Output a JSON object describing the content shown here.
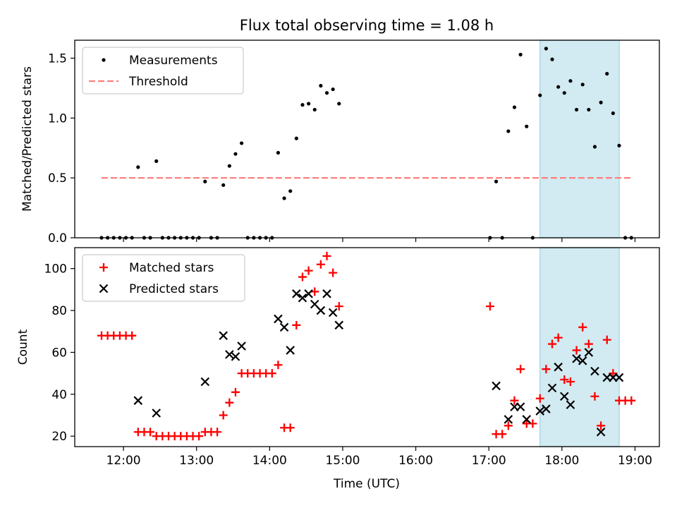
{
  "chart_data": [
    {
      "type": "scatter",
      "title": "Flux total observing time = 1.08 h",
      "xlabel": "",
      "ylabel": "Matched/Predicted stars",
      "xlim": [
        "11:20",
        "19:20"
      ],
      "ylim": [
        0,
        1.65
      ],
      "yticks": [
        "0.0",
        "0.5",
        "1.0",
        "1.5"
      ],
      "xticks": [
        "12:00",
        "13:00",
        "14:00",
        "15:00",
        "16:00",
        "17:00",
        "18:00",
        "19:00"
      ],
      "show_xtick_labels": false,
      "grid": false,
      "legend_position": "upper-left",
      "shaded_span": [
        "17:42",
        "18:47"
      ],
      "shaded_color": "#add8e6",
      "series": [
        {
          "name": "Measurements",
          "kind": "points",
          "color": "#000000",
          "points": [
            [
              "11:42",
              0
            ],
            [
              "11:47",
              0
            ],
            [
              "11:52",
              0
            ],
            [
              "11:57",
              0
            ],
            [
              "12:02",
              0
            ],
            [
              "12:07",
              0
            ],
            [
              "12:12",
              0.59
            ],
            [
              "12:17",
              0
            ],
            [
              "12:22",
              0
            ],
            [
              "12:27",
              0.64
            ],
            [
              "12:32",
              0
            ],
            [
              "12:37",
              0
            ],
            [
              "12:42",
              0
            ],
            [
              "12:47",
              0
            ],
            [
              "12:52",
              0
            ],
            [
              "12:57",
              0
            ],
            [
              "13:02",
              0
            ],
            [
              "13:07",
              0.47
            ],
            [
              "13:12",
              0
            ],
            [
              "13:17",
              0
            ],
            [
              "13:22",
              0.44
            ],
            [
              "13:27",
              0.6
            ],
            [
              "13:32",
              0.7
            ],
            [
              "13:37",
              0.79
            ],
            [
              "13:42",
              0
            ],
            [
              "13:47",
              0
            ],
            [
              "13:52",
              0
            ],
            [
              "13:57",
              0
            ],
            [
              "14:02",
              0
            ],
            [
              "14:07",
              0.71
            ],
            [
              "14:12",
              0.33
            ],
            [
              "14:17",
              0.39
            ],
            [
              "14:22",
              0.83
            ],
            [
              "14:27",
              1.11
            ],
            [
              "14:32",
              1.12
            ],
            [
              "14:37",
              1.07
            ],
            [
              "14:42",
              1.27
            ],
            [
              "14:47",
              1.21
            ],
            [
              "14:52",
              1.24
            ],
            [
              "14:57",
              1.12
            ],
            [
              "17:01",
              0
            ],
            [
              "17:06",
              0.47
            ],
            [
              "17:11",
              0
            ],
            [
              "17:16",
              0.89
            ],
            [
              "17:21",
              1.09
            ],
            [
              "17:26",
              1.53
            ],
            [
              "17:31",
              0.93
            ],
            [
              "17:36",
              0
            ],
            [
              "17:42",
              1.19
            ],
            [
              "17:47",
              1.58
            ],
            [
              "17:52",
              1.49
            ],
            [
              "17:57",
              1.26
            ],
            [
              "18:02",
              1.21
            ],
            [
              "18:07",
              1.31
            ],
            [
              "18:12",
              1.07
            ],
            [
              "18:17",
              1.28
            ],
            [
              "18:22",
              1.07
            ],
            [
              "18:27",
              0.76
            ],
            [
              "18:32",
              1.13
            ],
            [
              "18:37",
              1.37
            ],
            [
              "18:42",
              1.04
            ],
            [
              "18:47",
              0.77
            ],
            [
              "18:52",
              0
            ],
            [
              "18:57",
              0
            ]
          ]
        },
        {
          "name": "Threshold",
          "kind": "dashed-line",
          "color": "#ff7f7f",
          "points": [
            [
              "11:42",
              0.5
            ],
            [
              "18:57",
              0.5
            ]
          ]
        }
      ]
    },
    {
      "type": "scatter",
      "title": "",
      "xlabel": "Time (UTC)",
      "ylabel": "Count",
      "xlim": [
        "11:20",
        "19:20"
      ],
      "ylim": [
        15,
        110
      ],
      "yticks": [
        "20",
        "40",
        "60",
        "80",
        "100"
      ],
      "xticks": [
        "12:00",
        "13:00",
        "14:00",
        "15:00",
        "16:00",
        "17:00",
        "18:00",
        "19:00"
      ],
      "show_xtick_labels": true,
      "grid": false,
      "legend_position": "upper-left",
      "shaded_span": [
        "17:42",
        "18:47"
      ],
      "shaded_color": "#add8e6",
      "series": [
        {
          "name": "Matched stars",
          "kind": "plus",
          "color": "#ff0000",
          "points": [
            [
              "11:42",
              68
            ],
            [
              "11:47",
              68
            ],
            [
              "11:52",
              68
            ],
            [
              "11:57",
              68
            ],
            [
              "12:02",
              68
            ],
            [
              "12:07",
              68
            ],
            [
              "12:12",
              22
            ],
            [
              "12:17",
              22
            ],
            [
              "12:22",
              22
            ],
            [
              "12:27",
              20
            ],
            [
              "12:32",
              20
            ],
            [
              "12:37",
              20
            ],
            [
              "12:42",
              20
            ],
            [
              "12:47",
              20
            ],
            [
              "12:52",
              20
            ],
            [
              "12:57",
              20
            ],
            [
              "13:02",
              20
            ],
            [
              "13:07",
              22
            ],
            [
              "13:12",
              22
            ],
            [
              "13:17",
              22
            ],
            [
              "13:22",
              30
            ],
            [
              "13:27",
              36
            ],
            [
              "13:32",
              41
            ],
            [
              "13:37",
              50
            ],
            [
              "13:42",
              50
            ],
            [
              "13:47",
              50
            ],
            [
              "13:52",
              50
            ],
            [
              "13:57",
              50
            ],
            [
              "14:02",
              50
            ],
            [
              "14:07",
              54
            ],
            [
              "14:12",
              24
            ],
            [
              "14:17",
              24
            ],
            [
              "14:22",
              73
            ],
            [
              "14:27",
              96
            ],
            [
              "14:32",
              99
            ],
            [
              "14:37",
              89
            ],
            [
              "14:42",
              102
            ],
            [
              "14:47",
              106
            ],
            [
              "14:52",
              98
            ],
            [
              "14:57",
              82
            ],
            [
              "17:01",
              82
            ],
            [
              "17:06",
              21
            ],
            [
              "17:11",
              21
            ],
            [
              "17:16",
              25
            ],
            [
              "17:21",
              37
            ],
            [
              "17:26",
              52
            ],
            [
              "17:31",
              26
            ],
            [
              "17:36",
              26
            ],
            [
              "17:42",
              38
            ],
            [
              "17:47",
              52
            ],
            [
              "17:52",
              64
            ],
            [
              "17:57",
              67
            ],
            [
              "18:02",
              47
            ],
            [
              "18:07",
              46
            ],
            [
              "18:12",
              61
            ],
            [
              "18:17",
              72
            ],
            [
              "18:22",
              64
            ],
            [
              "18:27",
              39
            ],
            [
              "18:32",
              25
            ],
            [
              "18:37",
              66
            ],
            [
              "18:42",
              50
            ],
            [
              "18:47",
              37
            ],
            [
              "18:52",
              37
            ],
            [
              "18:57",
              37
            ]
          ]
        },
        {
          "name": "Predicted stars",
          "kind": "cross",
          "color": "#000000",
          "points": [
            [
              "12:12",
              37
            ],
            [
              "12:27",
              31
            ],
            [
              "13:07",
              46
            ],
            [
              "13:22",
              68
            ],
            [
              "13:27",
              59
            ],
            [
              "13:32",
              58
            ],
            [
              "13:37",
              63
            ],
            [
              "14:07",
              76
            ],
            [
              "14:12",
              72
            ],
            [
              "14:17",
              61
            ],
            [
              "14:22",
              88
            ],
            [
              "14:27",
              86
            ],
            [
              "14:32",
              88
            ],
            [
              "14:37",
              83
            ],
            [
              "14:42",
              80
            ],
            [
              "14:47",
              88
            ],
            [
              "14:52",
              79
            ],
            [
              "14:57",
              73
            ],
            [
              "17:06",
              44
            ],
            [
              "17:16",
              28
            ],
            [
              "17:21",
              34
            ],
            [
              "17:26",
              34
            ],
            [
              "17:31",
              28
            ],
            [
              "17:42",
              32
            ],
            [
              "17:47",
              33
            ],
            [
              "17:52",
              43
            ],
            [
              "17:57",
              53
            ],
            [
              "18:02",
              39
            ],
            [
              "18:07",
              35
            ],
            [
              "18:12",
              57
            ],
            [
              "18:17",
              56
            ],
            [
              "18:22",
              60
            ],
            [
              "18:27",
              51
            ],
            [
              "18:32",
              22
            ],
            [
              "18:37",
              48
            ],
            [
              "18:42",
              48
            ],
            [
              "18:47",
              48
            ]
          ]
        }
      ]
    }
  ]
}
